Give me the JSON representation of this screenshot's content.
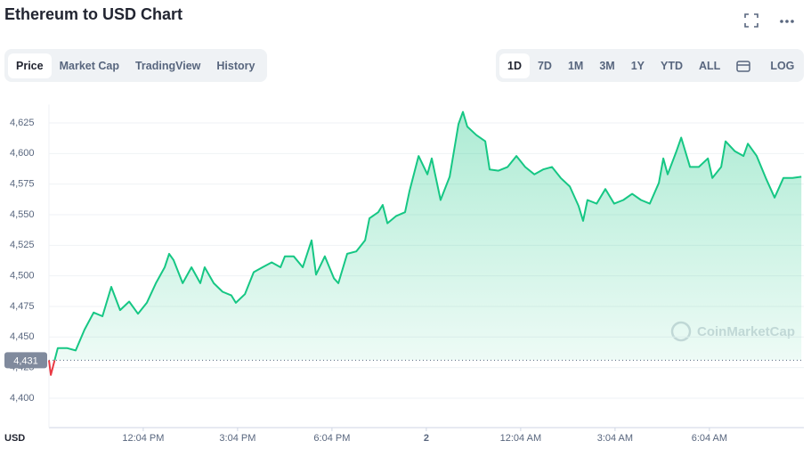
{
  "header": {
    "title": "Ethereum to USD Chart"
  },
  "tabs": [
    "Price",
    "Market Cap",
    "TradingView",
    "History"
  ],
  "ranges": [
    "1D",
    "7D",
    "1M",
    "3M",
    "1Y",
    "YTD",
    "ALL"
  ],
  "scale_button": "LOG",
  "watermark": "CoinMarketCap",
  "chart_data": {
    "type": "line",
    "y_axis_label": "USD",
    "x": [
      9.07,
      9.13,
      9.35,
      9.64,
      9.92,
      10.2,
      10.49,
      10.77,
      11.05,
      11.33,
      11.62,
      11.9,
      12.18,
      12.47,
      12.75,
      12.89,
      13.03,
      13.32,
      13.6,
      13.88,
      14.02,
      14.31,
      14.59,
      14.87,
      15.01,
      15.3,
      15.58,
      15.86,
      16.15,
      16.43,
      16.57,
      16.85,
      17.14,
      17.42,
      17.56,
      17.84,
      18.13,
      18.27,
      18.55,
      18.84,
      19.12,
      19.26,
      19.54,
      19.68,
      19.83,
      20.11,
      20.39,
      20.53,
      20.82,
      21.1,
      21.24,
      21.52,
      21.81,
      22.09,
      22.23,
      22.37,
      22.66,
      22.94,
      23.08,
      23.36,
      23.65,
      23.93,
      24.21,
      24.5,
      24.78,
      25.06,
      25.34,
      25.63,
      25.91,
      26.05,
      26.19,
      26.48,
      26.76,
      27.04,
      27.33,
      27.61,
      27.89,
      28.17,
      28.46,
      28.6,
      28.74,
      29.02,
      29.17,
      29.45,
      29.73,
      30.02,
      30.16,
      30.44,
      30.58,
      30.87,
      31.15,
      31.29,
      31.57,
      31.86,
      32.14,
      32.42,
      32.71,
      32.99
    ],
    "series": [
      {
        "name": "Price",
        "color": "#16c784",
        "below_color": "#ea3943",
        "values": [
          4431,
          4419,
          4441,
          4441,
          4439,
          4456,
          4470,
          4467,
          4491,
          4472,
          4479,
          4469,
          4478,
          4494,
          4507,
          4518,
          4513,
          4494,
          4507,
          4494,
          4507,
          4494,
          4487,
          4484,
          4478,
          4485,
          4503,
          4507,
          4511,
          4507,
          4516,
          4516,
          4507,
          4529,
          4501,
          4516,
          4498,
          4494,
          4518,
          4520,
          4529,
          4547,
          4552,
          4558,
          4543,
          4549,
          4552,
          4569,
          4598,
          4583,
          4596,
          4562,
          4581,
          4624,
          4634,
          4622,
          4615,
          4610,
          4587,
          4586,
          4589,
          4598,
          4589,
          4583,
          4587,
          4589,
          4580,
          4573,
          4557,
          4545,
          4562,
          4559,
          4571,
          4559,
          4562,
          4567,
          4562,
          4559,
          4576,
          4596,
          4583,
          4602,
          4613,
          4589,
          4589,
          4596,
          4580,
          4589,
          4610,
          4602,
          4598,
          4608,
          4598,
          4580,
          4564,
          4580,
          4580,
          4581
        ]
      }
    ],
    "reference": {
      "value": 4431,
      "label": "4,431"
    },
    "xlim": [
      9.07,
      33.07
    ],
    "xticks": [
      {
        "value": 12.067,
        "label": "12:04 PM"
      },
      {
        "value": 15.067,
        "label": "3:04 PM"
      },
      {
        "value": 18.067,
        "label": "6:04 PM"
      },
      {
        "value": 21.067,
        "label": "2"
      },
      {
        "value": 24.067,
        "label": "12:04 AM"
      },
      {
        "value": 27.067,
        "label": "3:04 AM"
      },
      {
        "value": 30.067,
        "label": "6:04 AM"
      }
    ],
    "ylim": [
      4390,
      4640
    ],
    "yticks": [
      {
        "value": 4400,
        "label": "4,400"
      },
      {
        "value": 4425,
        "label": "4,425"
      },
      {
        "value": 4450,
        "label": "4,450"
      },
      {
        "value": 4475,
        "label": "4,475"
      },
      {
        "value": 4500,
        "label": "4,500"
      },
      {
        "value": 4525,
        "label": "4,525"
      },
      {
        "value": 4550,
        "label": "4,550"
      },
      {
        "value": 4575,
        "label": "4,575"
      },
      {
        "value": 4600,
        "label": "4,600"
      },
      {
        "value": 4625,
        "label": "4,625"
      }
    ],
    "grid": true
  }
}
